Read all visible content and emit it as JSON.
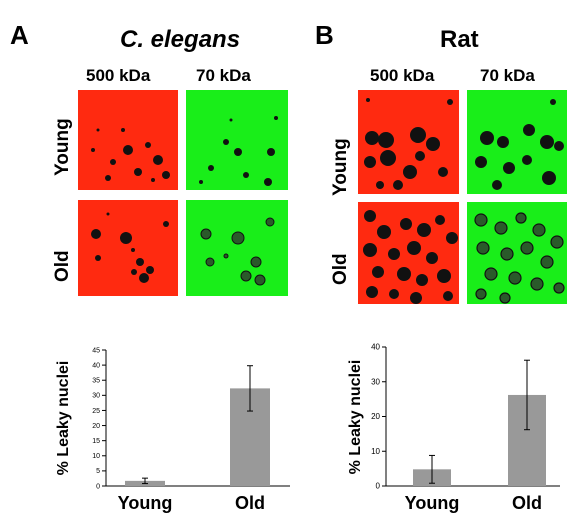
{
  "panels": [
    {
      "letter": "A",
      "organism": "C. elegans",
      "columns": [
        "500 kDa",
        "70 kDa"
      ],
      "rows": [
        "Young",
        "Old"
      ],
      "colors": {
        "dextran_500": "#ff2a10",
        "dextran_70": "#19ee19",
        "nuclei": "#111111"
      }
    },
    {
      "letter": "B",
      "organism": "Rat",
      "columns": [
        "500 kDa",
        "70 kDa"
      ],
      "rows": [
        "Young",
        "Old"
      ],
      "colors": {
        "dextran_500": "#ff2a10",
        "dextran_70": "#19ee19",
        "nuclei": "#111111"
      }
    }
  ],
  "chart_data": [
    {
      "type": "bar",
      "panel": "A",
      "categories": [
        "Young",
        "Old"
      ],
      "values": [
        1.7,
        32.3
      ],
      "error": [
        0.9,
        7.5
      ],
      "title": "",
      "xlabel": "",
      "ylabel": "% Leaky nuclei",
      "ylim": [
        0,
        45
      ],
      "yticks": [
        "0",
        "5",
        "10",
        "15",
        "20",
        "25",
        "30",
        "35",
        "40",
        "45"
      ],
      "bar_color": "#999999",
      "grid": false
    },
    {
      "type": "bar",
      "panel": "B",
      "categories": [
        "Young",
        "Old"
      ],
      "values": [
        4.8,
        26.2
      ],
      "error": [
        4.0,
        10.0
      ],
      "title": "",
      "xlabel": "",
      "ylabel": "% Leaky nuclei",
      "ylim": [
        0,
        40
      ],
      "yticks": [
        "0",
        "10",
        "20",
        "30",
        "40"
      ],
      "bar_color": "#999999",
      "grid": false
    }
  ]
}
